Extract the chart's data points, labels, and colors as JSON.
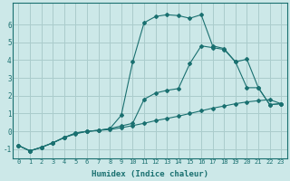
{
  "xlabel": "Humidex (Indice chaleur)",
  "bg_color": "#cce8e8",
  "grid_color": "#aacccc",
  "line_color": "#1a7070",
  "xlim": [
    -0.5,
    23.5
  ],
  "ylim": [
    -1.5,
    7.2
  ],
  "yticks": [
    -1,
    0,
    1,
    2,
    3,
    4,
    5,
    6
  ],
  "xticks": [
    0,
    1,
    2,
    3,
    4,
    5,
    6,
    7,
    8,
    9,
    10,
    11,
    12,
    13,
    14,
    15,
    16,
    17,
    18,
    19,
    20,
    21,
    22,
    23
  ],
  "series1_x": [
    0,
    1,
    2,
    3,
    4,
    5,
    6,
    7,
    8,
    9,
    10,
    11,
    12,
    13,
    14,
    15,
    16,
    17,
    18,
    19,
    20,
    21,
    22,
    23
  ],
  "series1_y": [
    -0.8,
    -1.1,
    -0.9,
    -0.65,
    -0.35,
    -0.15,
    0.0,
    0.05,
    0.1,
    0.2,
    0.32,
    0.45,
    0.6,
    0.72,
    0.85,
    1.0,
    1.15,
    1.3,
    1.42,
    1.55,
    1.65,
    1.72,
    1.78,
    1.55
  ],
  "series2_x": [
    0,
    1,
    2,
    3,
    4,
    5,
    6,
    7,
    8,
    9,
    10,
    11,
    12,
    13,
    14,
    15,
    16,
    17,
    18,
    19,
    20,
    21,
    22,
    23
  ],
  "series2_y": [
    -0.8,
    -1.1,
    -0.9,
    -0.65,
    -0.35,
    -0.1,
    0.0,
    0.05,
    0.15,
    0.9,
    3.9,
    6.1,
    6.45,
    6.55,
    6.5,
    6.35,
    6.55,
    4.8,
    4.65,
    3.9,
    2.45,
    2.45,
    1.5,
    1.55
  ],
  "series3_x": [
    0,
    1,
    2,
    3,
    4,
    5,
    6,
    7,
    8,
    9,
    10,
    11,
    12,
    13,
    14,
    15,
    16,
    17,
    18,
    19,
    20,
    21,
    22,
    23
  ],
  "series3_y": [
    -0.8,
    -1.1,
    -0.9,
    -0.65,
    -0.35,
    -0.1,
    0.0,
    0.05,
    0.15,
    0.3,
    0.45,
    1.8,
    2.15,
    2.3,
    2.4,
    3.8,
    4.8,
    4.7,
    4.6,
    3.9,
    4.05,
    2.45,
    1.5,
    1.55
  ]
}
